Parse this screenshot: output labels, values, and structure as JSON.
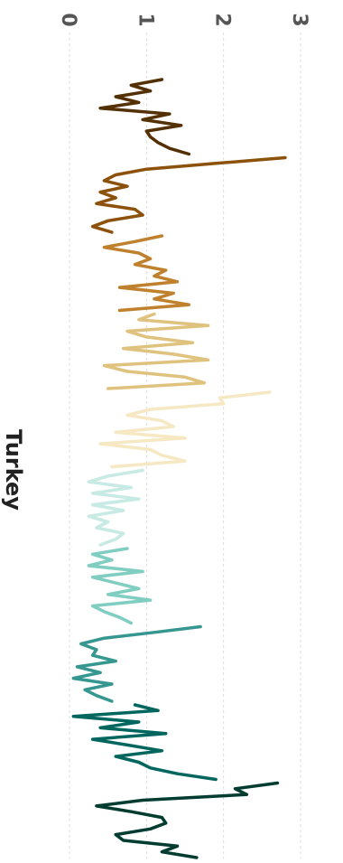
{
  "chart_data": {
    "type": "line",
    "orientation": "rotated-90",
    "title": "Turkey",
    "xlabel": "",
    "ylabel": "",
    "ylim": [
      0,
      3
    ],
    "yticks": [
      "0",
      "1",
      "2",
      "3"
    ],
    "grid": true,
    "legend": "none",
    "series": [
      {
        "color": "#543005",
        "values": [
          1.2,
          0.8,
          1.05,
          0.6,
          0.9,
          0.4,
          1.3,
          0.95,
          1.45,
          1.0,
          1.05,
          1.15,
          1.3,
          1.55
        ]
      },
      {
        "color": "#8c510a",
        "values": [
          2.8,
          1.9,
          1.0,
          0.6,
          0.45,
          0.75,
          0.4,
          0.6,
          0.35,
          0.85,
          0.95,
          0.5,
          0.3,
          0.55
        ]
      },
      {
        "color": "#bf812d",
        "values": [
          1.2,
          0.85,
          0.45,
          0.9,
          1.05,
          0.85,
          1.25,
          1.1,
          1.4,
          0.65,
          1.35,
          1.1,
          1.55,
          0.65
        ]
      },
      {
        "color": "#dfc27d",
        "values": [
          1.1,
          0.9,
          1.8,
          0.75,
          1.0,
          1.6,
          0.7,
          1.35,
          1.8,
          0.45,
          0.75,
          1.5,
          1.75,
          0.5
        ]
      },
      {
        "color": "#f6e8c3",
        "values": [
          2.6,
          1.95,
          2.0,
          1.05,
          0.75,
          1.2,
          1.35,
          0.6,
          1.5,
          0.4,
          1.05,
          1.2,
          1.5,
          0.55
        ]
      },
      {
        "color": "#c7eae5",
        "values": [
          0.95,
          0.5,
          0.25,
          0.8,
          0.3,
          0.9,
          0.3,
          0.7,
          0.25,
          0.5,
          0.35,
          0.7,
          0.6,
          0.4
        ]
      },
      {
        "color": "#80cdc1",
        "values": [
          0.75,
          0.3,
          0.55,
          0.25,
          0.95,
          0.3,
          0.6,
          0.9,
          0.5,
          1.05,
          0.3,
          0.45,
          0.65,
          0.8
        ]
      },
      {
        "color": "#35978f",
        "values": [
          1.7,
          1.1,
          0.45,
          0.15,
          0.35,
          0.3,
          0.6,
          0.1,
          0.4,
          0.05,
          0.55,
          0.2,
          0.35,
          0.55
        ]
      },
      {
        "color": "#01665e",
        "values": [
          0.85,
          1.15,
          0.05,
          0.9,
          0.4,
          1.25,
          0.3,
          0.75,
          1.2,
          0.6,
          0.9,
          1.05,
          1.4,
          1.9
        ]
      },
      {
        "color": "#003c30",
        "values": [
          2.7,
          2.15,
          2.3,
          0.95,
          0.35,
          0.8,
          1.2,
          1.25,
          1.05,
          0.6,
          0.7,
          1.4,
          1.2,
          1.65
        ]
      }
    ]
  }
}
